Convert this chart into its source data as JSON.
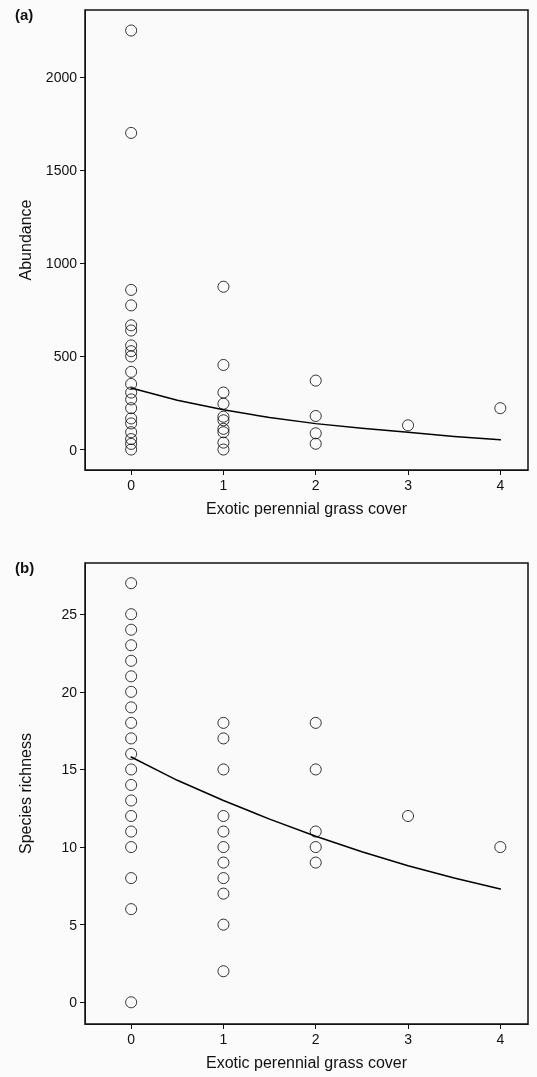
{
  "chart_data": [
    {
      "type": "scatter",
      "title": "(a)",
      "xlabel": "Exotic perennial grass cover",
      "ylabel": "Abundance",
      "xlim": [
        -0.5,
        4.3
      ],
      "xticks": [
        0,
        1,
        2,
        3,
        4
      ],
      "ylim": [
        -110,
        2360
      ],
      "yticks": [
        0,
        500,
        1000,
        1500,
        2000
      ],
      "grid": false,
      "marker": "circle",
      "series": [
        {
          "color": "#000000",
          "x": [
            0,
            0,
            0,
            0,
            0,
            0,
            0,
            0,
            0,
            0,
            0,
            0,
            0,
            0,
            0,
            0,
            0,
            0,
            0,
            0,
            1,
            1,
            1,
            1,
            1,
            1,
            1,
            1,
            1,
            1,
            2,
            2,
            2,
            2,
            3,
            4
          ],
          "values": [
            2250,
            1700,
            857,
            774,
            667,
            639,
            559,
            528,
            500,
            417,
            352,
            306,
            269,
            222,
            167,
            140,
            93,
            56,
            30,
            0,
            874,
            454,
            306,
            246,
            176,
            157,
            111,
            93,
            37,
            0,
            370,
            180,
            87,
            31,
            130,
            222
          ]
        },
        {
          "type": "line",
          "color": "#000000",
          "marker": "none",
          "line_style": "solid",
          "x": [
            0,
            0.5,
            1,
            1.5,
            2,
            2.5,
            3,
            3.5,
            4
          ],
          "values": [
            330,
            265,
            213,
            172,
            139,
            114,
            93,
            70,
            52
          ]
        }
      ]
    },
    {
      "type": "scatter",
      "title": "(b)",
      "xlabel": "Exotic perennial grass cover",
      "ylabel": "Species richness",
      "xlim": [
        -0.5,
        4.3
      ],
      "xticks": [
        0,
        1,
        2,
        3,
        4
      ],
      "ylim": [
        -1.4,
        28.3
      ],
      "yticks": [
        0,
        5,
        10,
        15,
        20,
        25
      ],
      "grid": false,
      "marker": "circle",
      "series": [
        {
          "color": "#000000",
          "x": [
            0,
            0,
            0,
            0,
            0,
            0,
            0,
            0,
            0,
            0,
            0,
            0,
            0,
            0,
            0,
            0,
            0,
            0,
            0,
            0,
            1,
            1,
            1,
            1,
            1,
            1,
            1,
            1,
            1,
            1,
            1,
            2,
            2,
            2,
            2,
            2,
            3,
            4
          ],
          "values": [
            27,
            25,
            24,
            23,
            22,
            21,
            20,
            19,
            18,
            17,
            16,
            15,
            14,
            13,
            12,
            11,
            10,
            8,
            6,
            0,
            18,
            17,
            15,
            12,
            11,
            10,
            9,
            8,
            7,
            5,
            2,
            18,
            15,
            11,
            10,
            9,
            12,
            10
          ]
        },
        {
          "type": "line",
          "color": "#000000",
          "marker": "none",
          "line_style": "solid",
          "x": [
            0,
            0.5,
            1,
            1.5,
            2,
            2.5,
            3,
            3.5,
            4
          ],
          "values": [
            15.8,
            14.3,
            13.0,
            11.8,
            10.7,
            9.7,
            8.8,
            8.0,
            7.3
          ]
        }
      ]
    }
  ]
}
